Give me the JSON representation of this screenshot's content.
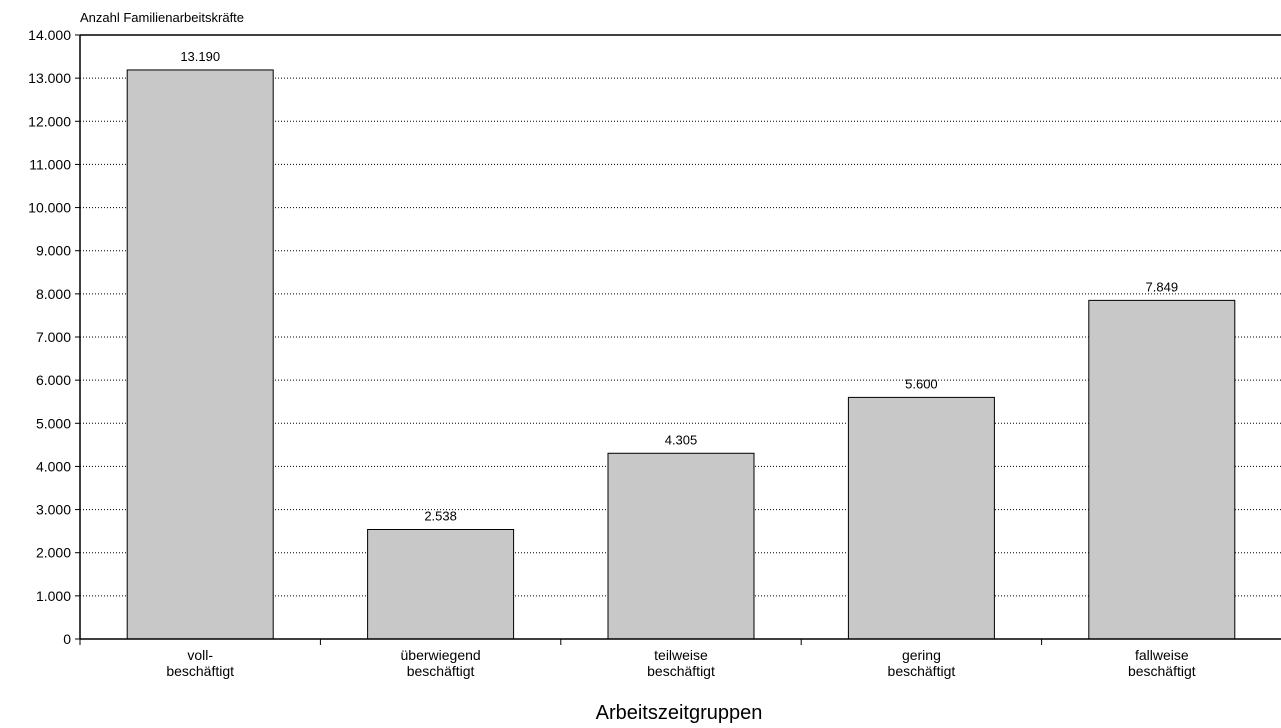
{
  "chart_data": {
    "type": "bar",
    "title": "",
    "ylabel": "Anzahl Familienarbeitskräfte",
    "xlabel": "Arbeitszeitgruppen",
    "categories": [
      [
        "voll-",
        "beschäftigt"
      ],
      [
        "überwiegend",
        "beschäftigt"
      ],
      [
        "teilweise",
        "beschäftigt"
      ],
      [
        "gering",
        "beschäftigt"
      ],
      [
        "fallweise",
        "beschäftigt"
      ]
    ],
    "values": [
      13190,
      2538,
      4305,
      5600,
      7849
    ],
    "value_labels": [
      "13.190",
      "2.538",
      "4.305",
      "5.600",
      "7.849"
    ],
    "ylim": [
      0,
      14000
    ],
    "yticks": [
      0,
      1000,
      2000,
      3000,
      4000,
      5000,
      6000,
      7000,
      8000,
      9000,
      10000,
      11000,
      12000,
      13000,
      14000
    ],
    "ytick_labels": [
      "0",
      "1.000",
      "2.000",
      "3.000",
      "4.000",
      "5.000",
      "6.000",
      "7.000",
      "8.000",
      "9.000",
      "10.000",
      "11.000",
      "12.000",
      "13.000",
      "14.000"
    ],
    "grid": true,
    "legend": "none",
    "colors": {
      "bar": "#c8c8c8",
      "bar_stroke": "#000000",
      "grid": "#000000"
    }
  }
}
